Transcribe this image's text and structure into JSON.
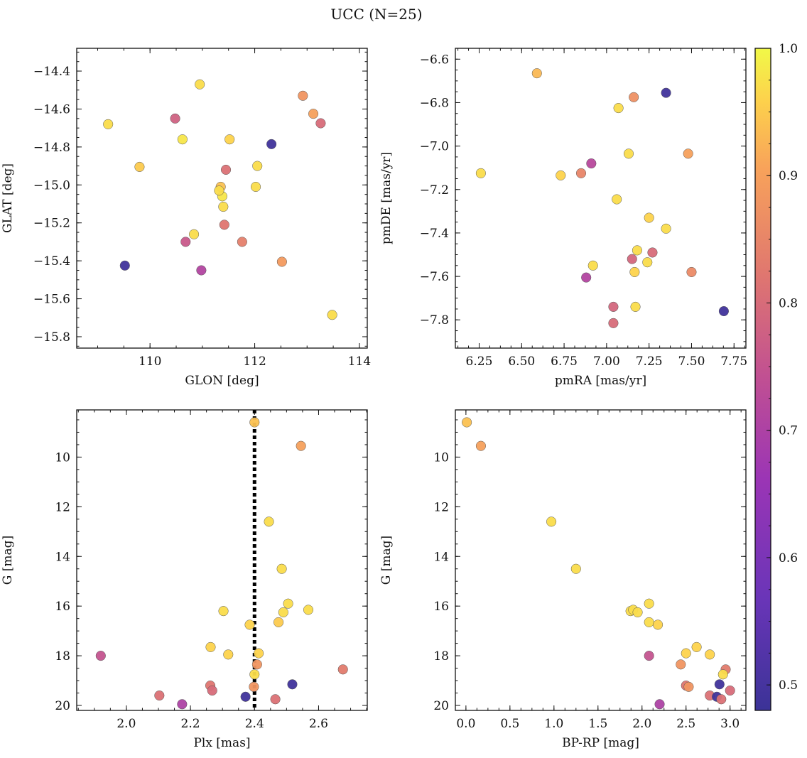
{
  "figure": {
    "title": "UCC (N=25)"
  },
  "colorbar": {
    "min": 0.48,
    "max": 1.0,
    "ticks": [
      0.5,
      0.6,
      0.7,
      0.8,
      0.9,
      1.0
    ],
    "tick_labels": [
      "0.5",
      "0.6",
      "0.7",
      "0.8",
      "0.9",
      "1.0"
    ],
    "colormap": "plasma"
  },
  "chart_data": [
    {
      "type": "scatter",
      "id": "glon-glat",
      "xlabel": "GLON [deg]",
      "ylabel": "GLAT [deg]",
      "xlim": [
        108.6,
        114.15
      ],
      "ylim": [
        -15.86,
        -14.28
      ],
      "y_inverted": false,
      "xticks": [
        110,
        112,
        114
      ],
      "xtick_labels": [
        "110",
        "112",
        "114"
      ],
      "yticks": [
        -14.4,
        -14.6,
        -14.8,
        -15.0,
        -15.2,
        -15.4,
        -15.6,
        -15.8
      ],
      "ytick_labels": [
        "−14.4",
        "−14.6",
        "−14.8",
        "−15.0",
        "−15.2",
        "−15.4",
        "−15.6",
        "−15.8"
      ],
      "vline": null,
      "points": [
        {
          "x": 109.2,
          "y": -14.68,
          "c": 0.97
        },
        {
          "x": 109.52,
          "y": -15.425,
          "c": 0.49
        },
        {
          "x": 109.8,
          "y": -14.905,
          "c": 0.95
        },
        {
          "x": 110.48,
          "y": -14.65,
          "c": 0.78
        },
        {
          "x": 110.62,
          "y": -14.76,
          "c": 0.98
        },
        {
          "x": 110.68,
          "y": -15.3,
          "c": 0.76
        },
        {
          "x": 110.84,
          "y": -15.26,
          "c": 0.97
        },
        {
          "x": 110.95,
          "y": -14.47,
          "c": 0.97
        },
        {
          "x": 110.98,
          "y": -15.45,
          "c": 0.71
        },
        {
          "x": 111.35,
          "y": -15.01,
          "c": 0.94
        },
        {
          "x": 111.38,
          "y": -15.06,
          "c": 0.98
        },
        {
          "x": 111.32,
          "y": -15.03,
          "c": 0.97
        },
        {
          "x": 111.4,
          "y": -15.115,
          "c": 0.97
        },
        {
          "x": 111.42,
          "y": -15.21,
          "c": 0.82
        },
        {
          "x": 111.45,
          "y": -14.92,
          "c": 0.81
        },
        {
          "x": 111.52,
          "y": -14.76,
          "c": 0.96
        },
        {
          "x": 111.76,
          "y": -15.3,
          "c": 0.84
        },
        {
          "x": 112.02,
          "y": -15.01,
          "c": 0.97
        },
        {
          "x": 112.05,
          "y": -14.9,
          "c": 0.97
        },
        {
          "x": 112.32,
          "y": -14.785,
          "c": 0.49
        },
        {
          "x": 112.52,
          "y": -15.405,
          "c": 0.89
        },
        {
          "x": 112.92,
          "y": -14.53,
          "c": 0.88
        },
        {
          "x": 113.12,
          "y": -14.625,
          "c": 0.9
        },
        {
          "x": 113.26,
          "y": -14.675,
          "c": 0.8
        },
        {
          "x": 113.48,
          "y": -15.685,
          "c": 0.97
        }
      ]
    },
    {
      "type": "scatter",
      "id": "pmra-pmde",
      "xlabel": "pmRA [mas/yr]",
      "ylabel": "pmDE [mas/yr]",
      "xlim": [
        6.11,
        7.82
      ],
      "ylim": [
        -7.93,
        -6.55
      ],
      "y_inverted": false,
      "xticks": [
        6.25,
        6.5,
        6.75,
        7.0,
        7.25,
        7.5,
        7.75
      ],
      "xtick_labels": [
        "6.25",
        "6.50",
        "6.75",
        "7.00",
        "7.25",
        "7.50",
        "7.75"
      ],
      "yticks": [
        -6.6,
        -6.8,
        -7.0,
        -7.2,
        -7.4,
        -7.6,
        -7.8
      ],
      "ytick_labels": [
        "−6.6",
        "−6.8",
        "−7.0",
        "−7.2",
        "−7.4",
        "−7.6",
        "−7.8"
      ],
      "vline": null,
      "points": [
        {
          "x": 6.26,
          "y": -7.125,
          "c": 0.97
        },
        {
          "x": 6.59,
          "y": -6.665,
          "c": 0.93
        },
        {
          "x": 6.73,
          "y": -7.135,
          "c": 0.96
        },
        {
          "x": 6.85,
          "y": -7.125,
          "c": 0.85
        },
        {
          "x": 6.88,
          "y": -7.605,
          "c": 0.71
        },
        {
          "x": 6.91,
          "y": -7.08,
          "c": 0.72
        },
        {
          "x": 6.92,
          "y": -7.55,
          "c": 0.97
        },
        {
          "x": 7.04,
          "y": -7.74,
          "c": 0.79
        },
        {
          "x": 7.04,
          "y": -7.815,
          "c": 0.8
        },
        {
          "x": 7.06,
          "y": -7.245,
          "c": 0.97
        },
        {
          "x": 7.07,
          "y": -6.825,
          "c": 0.97
        },
        {
          "x": 7.13,
          "y": -7.035,
          "c": 0.97
        },
        {
          "x": 7.15,
          "y": -7.52,
          "c": 0.79
        },
        {
          "x": 7.16,
          "y": -6.775,
          "c": 0.87
        },
        {
          "x": 7.165,
          "y": -7.58,
          "c": 0.96
        },
        {
          "x": 7.17,
          "y": -7.74,
          "c": 0.97
        },
        {
          "x": 7.18,
          "y": -7.48,
          "c": 0.97
        },
        {
          "x": 7.24,
          "y": -7.535,
          "c": 0.97
        },
        {
          "x": 7.25,
          "y": -7.33,
          "c": 0.96
        },
        {
          "x": 7.27,
          "y": -7.49,
          "c": 0.8
        },
        {
          "x": 7.35,
          "y": -7.38,
          "c": 0.97
        },
        {
          "x": 7.35,
          "y": -6.755,
          "c": 0.49
        },
        {
          "x": 7.48,
          "y": -7.035,
          "c": 0.9
        },
        {
          "x": 7.5,
          "y": -7.58,
          "c": 0.86
        },
        {
          "x": 7.69,
          "y": -7.76,
          "c": 0.49
        }
      ]
    },
    {
      "type": "scatter",
      "id": "plx-g",
      "xlabel": "Plx [mas]",
      "ylabel": "G [mag]",
      "xlim": [
        1.845,
        2.752
      ],
      "ylim": [
        20.2,
        8.1
      ],
      "y_inverted": true,
      "xticks": [
        2.0,
        2.2,
        2.4,
        2.6
      ],
      "xtick_labels": [
        "2.0",
        "2.2",
        "2.4",
        "2.6"
      ],
      "yticks": [
        10,
        12,
        14,
        16,
        18,
        20
      ],
      "ytick_labels": [
        "10",
        "12",
        "14",
        "16",
        "18",
        "20"
      ],
      "vline": 2.4,
      "points": [
        {
          "x": 2.4,
          "y": 8.6,
          "c": 0.94
        },
        {
          "x": 2.545,
          "y": 9.55,
          "c": 0.9
        },
        {
          "x": 2.445,
          "y": 12.6,
          "c": 0.97
        },
        {
          "x": 2.485,
          "y": 14.5,
          "c": 0.97
        },
        {
          "x": 2.505,
          "y": 15.9,
          "c": 0.97
        },
        {
          "x": 2.303,
          "y": 16.2,
          "c": 0.97
        },
        {
          "x": 2.49,
          "y": 16.25,
          "c": 0.97
        },
        {
          "x": 2.568,
          "y": 16.15,
          "c": 0.97
        },
        {
          "x": 2.385,
          "y": 16.75,
          "c": 0.96
        },
        {
          "x": 2.475,
          "y": 16.65,
          "c": 0.95
        },
        {
          "x": 2.263,
          "y": 17.65,
          "c": 0.96
        },
        {
          "x": 2.318,
          "y": 17.95,
          "c": 0.96
        },
        {
          "x": 2.413,
          "y": 17.9,
          "c": 0.96
        },
        {
          "x": 1.92,
          "y": 18.0,
          "c": 0.75
        },
        {
          "x": 2.408,
          "y": 18.35,
          "c": 0.88
        },
        {
          "x": 2.676,
          "y": 18.55,
          "c": 0.83
        },
        {
          "x": 2.4,
          "y": 18.75,
          "c": 0.97
        },
        {
          "x": 2.518,
          "y": 19.15,
          "c": 0.49
        },
        {
          "x": 2.262,
          "y": 19.2,
          "c": 0.82
        },
        {
          "x": 2.398,
          "y": 19.25,
          "c": 0.88
        },
        {
          "x": 2.268,
          "y": 19.4,
          "c": 0.8
        },
        {
          "x": 2.103,
          "y": 19.6,
          "c": 0.81
        },
        {
          "x": 2.372,
          "y": 19.65,
          "c": 0.49
        },
        {
          "x": 2.465,
          "y": 19.75,
          "c": 0.81
        },
        {
          "x": 2.174,
          "y": 19.95,
          "c": 0.7
        }
      ]
    },
    {
      "type": "scatter",
      "id": "bprp-g",
      "xlabel": "BP-RP [mag]",
      "ylabel": "G [mag]",
      "xlim": [
        -0.12,
        3.18
      ],
      "ylim": [
        20.2,
        8.1
      ],
      "y_inverted": true,
      "xticks": [
        0.0,
        0.5,
        1.0,
        1.5,
        2.0,
        2.5,
        3.0
      ],
      "xtick_labels": [
        "0.0",
        "0.5",
        "1.0",
        "1.5",
        "2.0",
        "2.5",
        "3.0"
      ],
      "yticks": [
        10,
        12,
        14,
        16,
        18,
        20
      ],
      "ytick_labels": [
        "10",
        "12",
        "14",
        "16",
        "18",
        "20"
      ],
      "vline": null,
      "points": [
        {
          "x": 0.01,
          "y": 8.6,
          "c": 0.94
        },
        {
          "x": 0.17,
          "y": 9.55,
          "c": 0.9
        },
        {
          "x": 0.97,
          "y": 12.6,
          "c": 0.97
        },
        {
          "x": 1.25,
          "y": 14.5,
          "c": 0.97
        },
        {
          "x": 2.08,
          "y": 15.9,
          "c": 0.97
        },
        {
          "x": 1.87,
          "y": 16.2,
          "c": 0.97
        },
        {
          "x": 1.9,
          "y": 16.15,
          "c": 0.97
        },
        {
          "x": 1.95,
          "y": 16.25,
          "c": 0.97
        },
        {
          "x": 2.08,
          "y": 16.65,
          "c": 0.97
        },
        {
          "x": 2.18,
          "y": 16.75,
          "c": 0.96
        },
        {
          "x": 2.5,
          "y": 17.9,
          "c": 0.96
        },
        {
          "x": 2.62,
          "y": 17.65,
          "c": 0.96
        },
        {
          "x": 2.77,
          "y": 17.95,
          "c": 0.96
        },
        {
          "x": 2.08,
          "y": 18.0,
          "c": 0.75
        },
        {
          "x": 2.44,
          "y": 18.35,
          "c": 0.88
        },
        {
          "x": 2.95,
          "y": 18.55,
          "c": 0.83
        },
        {
          "x": 2.92,
          "y": 18.75,
          "c": 0.97
        },
        {
          "x": 2.88,
          "y": 19.15,
          "c": 0.49
        },
        {
          "x": 2.5,
          "y": 19.2,
          "c": 0.82
        },
        {
          "x": 2.53,
          "y": 19.25,
          "c": 0.88
        },
        {
          "x": 3.0,
          "y": 19.4,
          "c": 0.8
        },
        {
          "x": 2.77,
          "y": 19.6,
          "c": 0.81
        },
        {
          "x": 2.85,
          "y": 19.65,
          "c": 0.49
        },
        {
          "x": 2.9,
          "y": 19.75,
          "c": 0.81
        },
        {
          "x": 2.2,
          "y": 19.95,
          "c": 0.7
        }
      ]
    }
  ]
}
